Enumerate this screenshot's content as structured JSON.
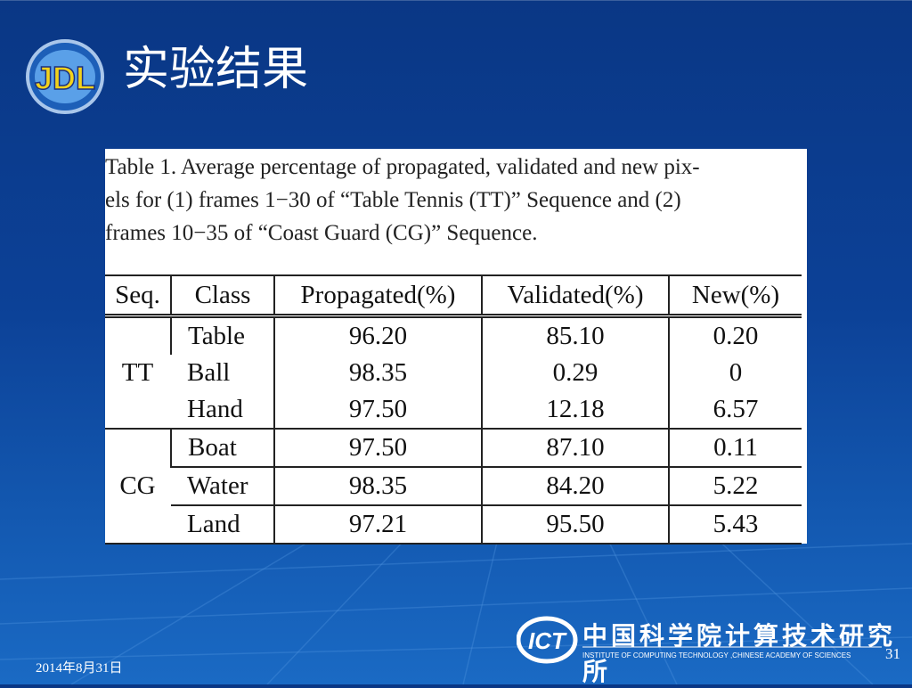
{
  "slide": {
    "logo": "JDL",
    "title": "实验结果",
    "caption": [
      "Table 1. Average percentage of propagated, validated and new pix-",
      "els for (1) frames 1−30 of “Table Tennis (TT)” Sequence and (2)",
      "frames 10−35 of “Coast Guard (CG)” Sequence."
    ],
    "table": {
      "header": [
        "Seq.",
        "Class",
        "Propagated(%)",
        "Validated(%)",
        "New(%)"
      ],
      "groups": [
        {
          "seq": "TT",
          "rows": [
            [
              "Table",
              "96.20",
              "85.10",
              "0.20"
            ],
            [
              "Ball",
              "98.35",
              "0.29",
              "0"
            ],
            [
              "Hand",
              "97.50",
              "12.18",
              "6.57"
            ]
          ]
        },
        {
          "seq": "CG",
          "rows": [
            [
              "Boat",
              "97.50",
              "87.10",
              "0.11"
            ],
            [
              "Water",
              "98.35",
              "84.20",
              "5.22"
            ],
            [
              "Land",
              "97.21",
              "95.50",
              "5.43"
            ]
          ]
        }
      ]
    },
    "footer": {
      "date": "2014年8月31日",
      "page": "31",
      "org_logo": "ICT",
      "org_name": "中国科学院计算技术研究所",
      "org_name_en": "INSTITUTE OF  COMPUTING TECHNOLOGY ,CHINESE ACADEMY OF SCIENCES"
    }
  }
}
